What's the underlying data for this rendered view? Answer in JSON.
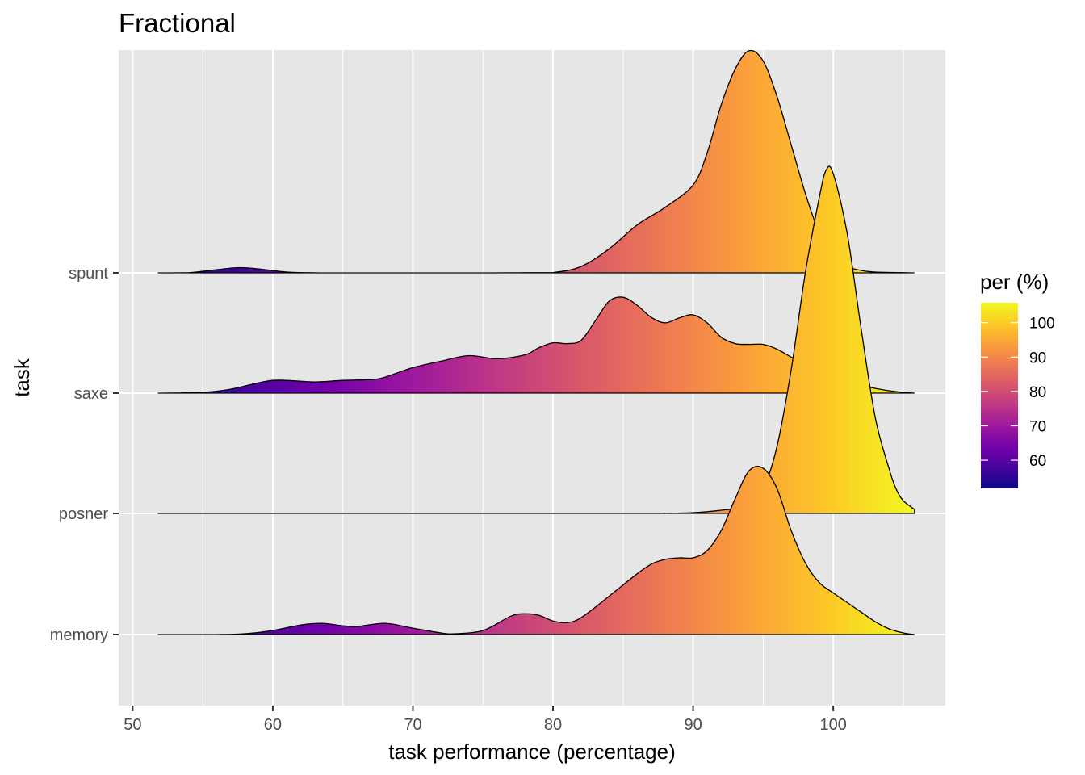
{
  "chart_data": {
    "type": "ridgeline",
    "title": "Fractional",
    "xlabel": "task performance (percentage)",
    "ylabel": "task",
    "xlim": [
      49,
      108
    ],
    "x_ticks": [
      50,
      60,
      70,
      80,
      90,
      100
    ],
    "x_range": [
      51.8,
      105.8
    ],
    "grid": true,
    "categories": [
      "memory",
      "posner",
      "saxe",
      "spunt"
    ],
    "series": [
      {
        "name": "spunt",
        "density": [
          [
            51.8,
            0
          ],
          [
            54,
            0.002
          ],
          [
            56,
            0.04
          ],
          [
            57.5,
            0.065
          ],
          [
            59,
            0.05
          ],
          [
            61,
            0.01
          ],
          [
            63,
            0.001
          ],
          [
            65,
            0
          ],
          [
            75,
            0
          ],
          [
            78,
            0.002
          ],
          [
            80,
            0.004
          ],
          [
            82,
            0.08
          ],
          [
            84,
            0.3
          ],
          [
            86,
            0.6
          ],
          [
            88,
            0.82
          ],
          [
            90,
            1.1
          ],
          [
            91,
            1.5
          ],
          [
            92,
            2.1
          ],
          [
            93,
            2.55
          ],
          [
            94,
            2.78
          ],
          [
            95,
            2.65
          ],
          [
            96,
            2.2
          ],
          [
            97,
            1.6
          ],
          [
            98,
            1.0
          ],
          [
            99,
            0.5
          ],
          [
            100,
            0.22
          ],
          [
            101,
            0.08
          ],
          [
            102,
            0.03
          ],
          [
            103,
            0.01
          ],
          [
            105.8,
            0
          ]
        ]
      },
      {
        "name": "saxe",
        "density": [
          [
            51.8,
            0
          ],
          [
            55,
            0.01
          ],
          [
            57,
            0.05
          ],
          [
            59,
            0.13
          ],
          [
            60,
            0.16
          ],
          [
            61,
            0.16
          ],
          [
            63,
            0.14
          ],
          [
            65,
            0.16
          ],
          [
            67,
            0.17
          ],
          [
            68,
            0.2
          ],
          [
            70,
            0.32
          ],
          [
            72,
            0.4
          ],
          [
            74,
            0.47
          ],
          [
            76,
            0.43
          ],
          [
            78,
            0.48
          ],
          [
            79,
            0.57
          ],
          [
            80,
            0.63
          ],
          [
            81,
            0.62
          ],
          [
            82,
            0.66
          ],
          [
            83,
            0.9
          ],
          [
            84,
            1.15
          ],
          [
            85,
            1.2
          ],
          [
            86,
            1.1
          ],
          [
            87,
            0.95
          ],
          [
            88,
            0.88
          ],
          [
            89,
            0.94
          ],
          [
            90,
            0.98
          ],
          [
            91,
            0.88
          ],
          [
            92,
            0.7
          ],
          [
            93,
            0.62
          ],
          [
            94,
            0.61
          ],
          [
            95,
            0.61
          ],
          [
            96,
            0.55
          ],
          [
            97,
            0.45
          ],
          [
            98,
            0.35
          ],
          [
            99,
            0.27
          ],
          [
            100,
            0.2
          ],
          [
            101,
            0.15
          ],
          [
            102,
            0.1
          ],
          [
            103,
            0.06
          ],
          [
            104,
            0.03
          ],
          [
            105,
            0.01
          ],
          [
            105.8,
            0
          ]
        ]
      },
      {
        "name": "posner",
        "density": [
          [
            51.8,
            0
          ],
          [
            85,
            0
          ],
          [
            88,
            0.002
          ],
          [
            90,
            0.01
          ],
          [
            92,
            0.04
          ],
          [
            94,
            0.1
          ],
          [
            95,
            0.3
          ],
          [
            96,
            0.85
          ],
          [
            97,
            1.8
          ],
          [
            98,
            3.0
          ],
          [
            99,
            3.95
          ],
          [
            99.5,
            4.3
          ],
          [
            100,
            4.25
          ],
          [
            101,
            3.5
          ],
          [
            102,
            2.3
          ],
          [
            103,
            1.2
          ],
          [
            104,
            0.55
          ],
          [
            104.5,
            0.3
          ],
          [
            105,
            0.16
          ],
          [
            105.8,
            0.05
          ]
        ]
      },
      {
        "name": "memory",
        "density": [
          [
            51.8,
            0
          ],
          [
            56,
            0
          ],
          [
            58,
            0.01
          ],
          [
            60,
            0.05
          ],
          [
            62,
            0.12
          ],
          [
            63.5,
            0.14
          ],
          [
            65,
            0.11
          ],
          [
            66,
            0.1
          ],
          [
            68,
            0.14
          ],
          [
            70,
            0.08
          ],
          [
            72,
            0.02
          ],
          [
            73,
            0.01
          ],
          [
            75,
            0.05
          ],
          [
            77,
            0.23
          ],
          [
            78,
            0.26
          ],
          [
            79,
            0.24
          ],
          [
            80,
            0.17
          ],
          [
            81,
            0.15
          ],
          [
            82,
            0.21
          ],
          [
            84,
            0.48
          ],
          [
            86,
            0.76
          ],
          [
            87,
            0.88
          ],
          [
            88,
            0.94
          ],
          [
            89,
            0.96
          ],
          [
            90,
            0.96
          ],
          [
            91,
            1.05
          ],
          [
            92,
            1.3
          ],
          [
            93,
            1.7
          ],
          [
            94,
            2.05
          ],
          [
            95,
            2.08
          ],
          [
            96,
            1.82
          ],
          [
            97,
            1.3
          ],
          [
            98,
            0.9
          ],
          [
            99,
            0.65
          ],
          [
            100,
            0.52
          ],
          [
            101,
            0.4
          ],
          [
            102,
            0.28
          ],
          [
            103,
            0.16
          ],
          [
            104,
            0.07
          ],
          [
            105,
            0.02
          ],
          [
            105.8,
            0
          ]
        ]
      }
    ],
    "legend": {
      "title": "per (%)",
      "ticks": [
        60,
        70,
        80,
        90,
        100
      ],
      "range": [
        51.8,
        105.8
      ],
      "position": "right"
    },
    "colormap": "plasma"
  },
  "colors": {
    "panel_background": "#e6e6e6",
    "grid": "#ffffff",
    "outline": "#000000",
    "tick_text": "#4d4d4d",
    "plasma_stops": [
      "#0d0887",
      "#46039f",
      "#7201a8",
      "#9c179e",
      "#bd3786",
      "#d8576b",
      "#ed7953",
      "#fb9f3a",
      "#fdca26",
      "#f0f921"
    ]
  }
}
